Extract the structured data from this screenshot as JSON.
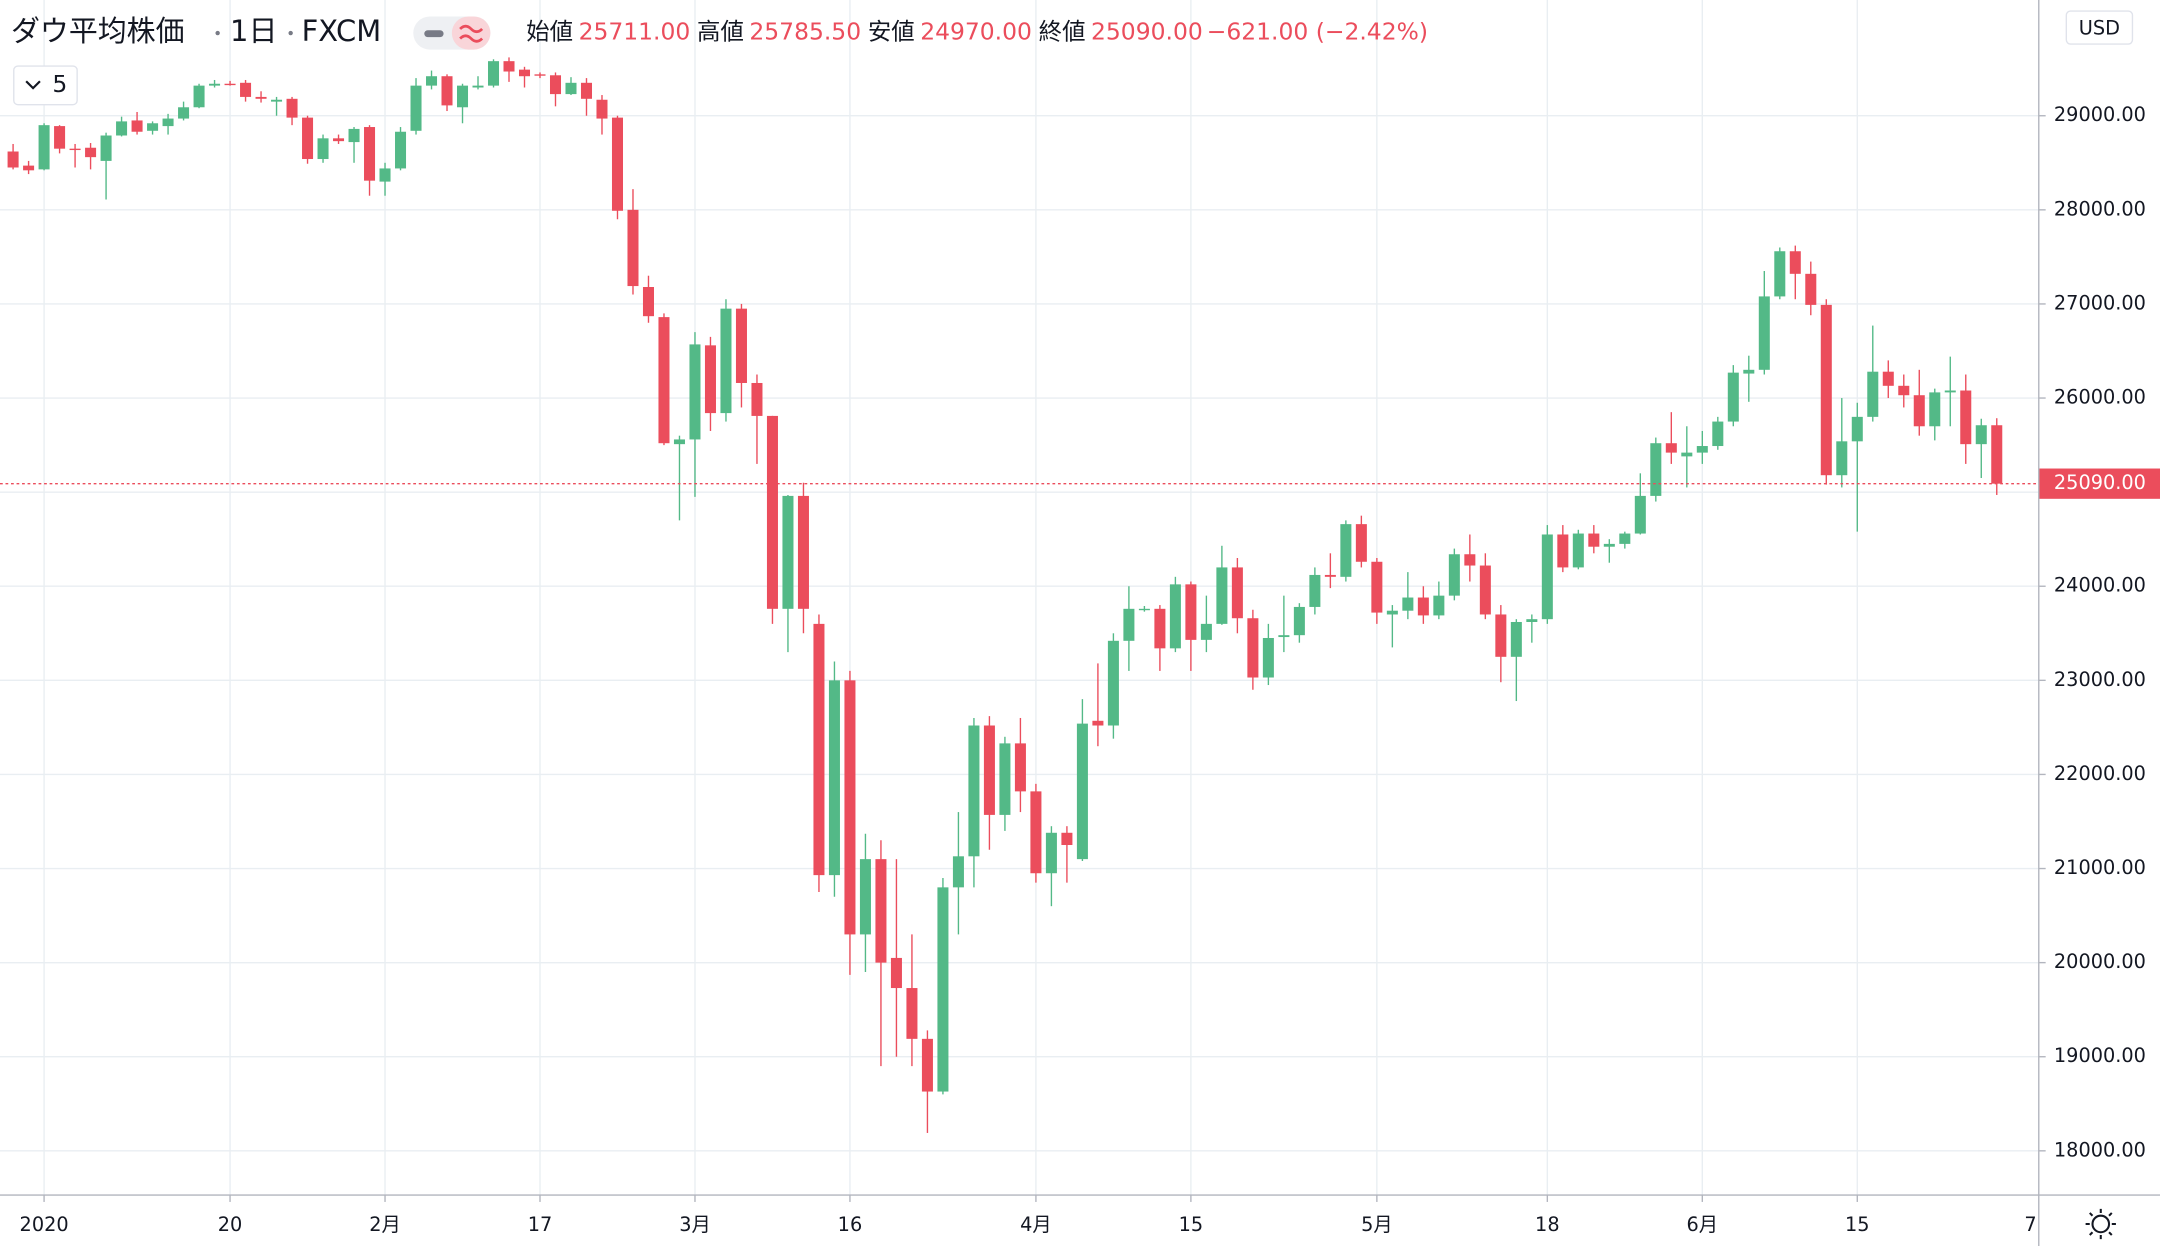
{
  "chart_data": {
    "type": "candlestick",
    "title": "ダウ平均株価",
    "interval": "1日",
    "source": "FXCM",
    "legend": [
      {
        "label": "始値",
        "value": "25711.00"
      },
      {
        "label": "高値",
        "value": "25785.50"
      },
      {
        "label": "安値",
        "value": "24970.00"
      },
      {
        "label": "終値",
        "value": "25090.00"
      }
    ],
    "change": "−621.00 (−2.42%)",
    "collapse_count": "5",
    "currency": "USD",
    "x_axis_end_label": "7",
    "up_color": "#53b987",
    "down_color": "#eb4d5c",
    "grid": true,
    "categories": [
      null,
      null,
      "2020",
      null,
      null,
      null,
      null,
      null,
      null,
      null,
      null,
      null,
      null,
      null,
      "20",
      null,
      null,
      null,
      null,
      null,
      null,
      null,
      null,
      null,
      "2月",
      null,
      null,
      null,
      null,
      null,
      null,
      null,
      null,
      null,
      "17",
      null,
      null,
      null,
      null,
      null,
      null,
      null,
      null,
      null,
      "3月",
      null,
      null,
      null,
      null,
      null,
      null,
      null,
      null,
      null,
      "16",
      null,
      null,
      null,
      null,
      null,
      null,
      null,
      null,
      null,
      null,
      null,
      "4月",
      null,
      null,
      null,
      null,
      null,
      null,
      null,
      null,
      null,
      "15",
      null,
      null,
      null,
      null,
      null,
      null,
      null,
      null,
      null,
      null,
      null,
      "5月",
      null,
      null,
      null,
      null,
      null,
      null,
      null,
      null,
      null,
      null,
      "18",
      null,
      null,
      null,
      null,
      null,
      null,
      null,
      null,
      null,
      "6月",
      null,
      null,
      null,
      null,
      null,
      null,
      null,
      null,
      null,
      "15",
      null,
      null,
      null,
      null,
      null,
      null,
      null,
      null,
      null
    ],
    "open": [
      28620,
      28470,
      28430,
      28890,
      28650,
      28660,
      28520,
      28790,
      28950,
      28840,
      28890,
      28970,
      29090,
      29320,
      29340,
      29350,
      29200,
      29150,
      29180,
      28980,
      28540,
      28760,
      28720,
      28880,
      28300,
      28440,
      28840,
      29320,
      29420,
      29090,
      29300,
      29320,
      29580,
      29490,
      29440,
      29430,
      29230,
      29350,
      29170,
      28980,
      28000,
      27180,
      26860,
      25510,
      25560,
      26560,
      25840,
      26950,
      26160,
      25810,
      23760,
      24960,
      23600,
      20930,
      23000,
      20300,
      21100,
      20050,
      19730,
      19190,
      18630,
      20800,
      21130,
      22520,
      21570,
      22330,
      21820,
      20950,
      21380,
      21100,
      22570,
      22520,
      23420,
      23760,
      23760,
      23340,
      24020,
      23430,
      23600,
      24200,
      23660,
      23030,
      23460,
      23480,
      23780,
      24120,
      24100,
      24660,
      24260,
      23700,
      23740,
      23880,
      23690,
      23900,
      24340,
      24220,
      23700,
      23250,
      23620,
      23650,
      24550,
      24200,
      24560,
      24420,
      24450,
      24560,
      24960,
      25520,
      25380,
      25420,
      25490,
      25750,
      26260,
      26300,
      27080,
      27560,
      27320,
      26990,
      25180,
      25540,
      25800,
      26280,
      26130,
      26030,
      25700,
      26060,
      26080,
      25510,
      25711
    ],
    "high": [
      28700,
      28520,
      28920,
      28900,
      28700,
      28710,
      28820,
      28990,
      29040,
      28940,
      29020,
      29150,
      29340,
      29380,
      29370,
      29380,
      29260,
      29200,
      29200,
      29000,
      28800,
      28800,
      28880,
      28900,
      28500,
      28880,
      29400,
      29480,
      29440,
      29340,
      29420,
      29600,
      29620,
      29520,
      29460,
      29460,
      29410,
      29400,
      29220,
      29000,
      28220,
      27300,
      26900,
      25600,
      26700,
      26650,
      27050,
      27000,
      26250,
      25810,
      24970,
      25100,
      23700,
      23200,
      23100,
      21370,
      21300,
      21100,
      20300,
      19280,
      20900,
      21600,
      22600,
      22620,
      22400,
      22600,
      21900,
      21450,
      21450,
      22800,
      23180,
      23500,
      24000,
      23790,
      23800,
      24100,
      24050,
      23900,
      24430,
      24300,
      23750,
      23600,
      23900,
      23820,
      24200,
      24350,
      24700,
      24750,
      24300,
      23800,
      24150,
      24000,
      24050,
      24400,
      24550,
      24350,
      23800,
      23650,
      23700,
      24650,
      24650,
      24600,
      24650,
      24500,
      24580,
      25200,
      25580,
      25850,
      25700,
      25650,
      25800,
      26350,
      26450,
      27350,
      27600,
      27620,
      27450,
      27050,
      26000,
      25950,
      26770,
      26400,
      26250,
      26300,
      26100,
      26440,
      26250,
      25780,
      25785.5
    ],
    "low": [
      28430,
      28380,
      28420,
      28600,
      28450,
      28430,
      28110,
      28780,
      28800,
      28800,
      28800,
      28950,
      29080,
      29300,
      29320,
      29150,
      29140,
      29000,
      28900,
      28490,
      28500,
      28700,
      28500,
      28150,
      28150,
      28420,
      28800,
      29280,
      29050,
      28920,
      29280,
      29300,
      29360,
      29300,
      29400,
      29100,
      29220,
      29000,
      28800,
      27900,
      27100,
      26800,
      25500,
      24700,
      24950,
      25650,
      25750,
      25900,
      25300,
      23600,
      23300,
      23500,
      20750,
      20700,
      19870,
      19900,
      18900,
      19000,
      18900,
      18190,
      18600,
      20300,
      20800,
      21200,
      21400,
      21600,
      20850,
      20600,
      20850,
      21080,
      22300,
      22380,
      23100,
      23730,
      23100,
      23300,
      23100,
      23300,
      23590,
      23500,
      22900,
      22950,
      23300,
      23400,
      23700,
      23980,
      24050,
      24200,
      23600,
      23350,
      23650,
      23600,
      23650,
      23850,
      24050,
      23650,
      22980,
      22780,
      23400,
      23600,
      24150,
      24180,
      24350,
      24250,
      24400,
      24550,
      24900,
      25300,
      25050,
      25300,
      25450,
      25700,
      25960,
      26250,
      27050,
      27050,
      26880,
      25080,
      25050,
      24580,
      25750,
      26000,
      25900,
      25600,
      25550,
      25700,
      25300,
      25150,
      24970
    ],
    "close": [
      28450,
      28420,
      28900,
      28650,
      28640,
      28560,
      28790,
      28940,
      28830,
      28920,
      28970,
      29090,
      29320,
      29340,
      29330,
      29200,
      29180,
      29170,
      28980,
      28540,
      28760,
      28730,
      28860,
      28310,
      28440,
      28830,
      29320,
      29420,
      29110,
      29320,
      29320,
      29580,
      29470,
      29420,
      29430,
      29230,
      29350,
      29180,
      28970,
      27990,
      27190,
      26870,
      25520,
      25560,
      26570,
      25840,
      26950,
      26160,
      25810,
      23760,
      24960,
      23760,
      20930,
      23000,
      20300,
      21100,
      20000,
      19730,
      19190,
      18630,
      20800,
      21130,
      22520,
      21570,
      22330,
      21820,
      20950,
      21380,
      21250,
      22540,
      22520,
      23420,
      23760,
      23760,
      23340,
      24020,
      23430,
      23600,
      24200,
      23660,
      23030,
      23450,
      23480,
      23780,
      24120,
      24100,
      24660,
      24260,
      23720,
      23740,
      23880,
      23690,
      23900,
      24340,
      24220,
      23700,
      23250,
      23620,
      23650,
      24550,
      24200,
      24560,
      24420,
      24450,
      24560,
      24960,
      25520,
      25420,
      25420,
      25490,
      25750,
      26270,
      26300,
      27080,
      27560,
      27320,
      26990,
      25180,
      25540,
      25800,
      26280,
      26130,
      26030,
      25700,
      26060,
      26080,
      25510,
      25711,
      25090
    ],
    "last_price": {
      "value": 25090,
      "label": "25090.00"
    },
    "ylim": [
      17530,
      30230
    ],
    "yticks": [
      {
        "value": 18000,
        "label": "18000.00"
      },
      {
        "value": 19000,
        "label": "19000.00"
      },
      {
        "value": 20000,
        "label": "20000.00"
      },
      {
        "value": 21000,
        "label": "21000.00"
      },
      {
        "value": 22000,
        "label": "22000.00"
      },
      {
        "value": 23000,
        "label": "23000.00"
      },
      {
        "value": 24000,
        "label": "24000.00"
      },
      {
        "value": 25000,
        "label": "25000.00"
      },
      {
        "value": 26000,
        "label": "26000.00"
      },
      {
        "value": 27000,
        "label": "27000.00"
      },
      {
        "value": 28000,
        "label": "28000.00"
      },
      {
        "value": 29000,
        "label": "29000.00"
      }
    ]
  }
}
